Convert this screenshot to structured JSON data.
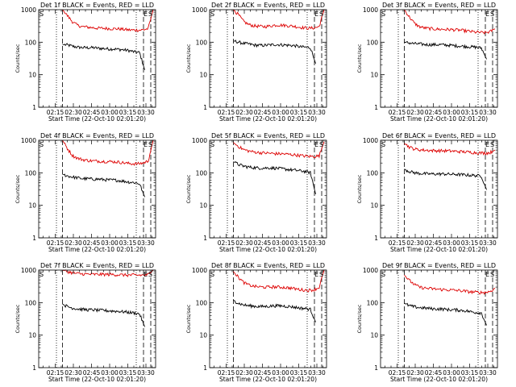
{
  "colors": {
    "events": "#000000",
    "lld": "#dd0000",
    "axis": "#000000"
  },
  "chart_data": [
    {
      "type": "line",
      "title": "Det 1f BLACK = Events, RED = LLD",
      "xlabel": "Start Time (22-Oct-10 02:01:20)",
      "ylabel": "Counts/sec",
      "x_ticks": [
        "02:15",
        "02:30",
        "02:45",
        "03:00",
        "03:15",
        "03:30"
      ],
      "y_ticks": [
        "1",
        "10",
        "100",
        "1000"
      ],
      "y_scale": "log",
      "ylim": [
        1,
        1000
      ],
      "xlim": [
        "02:01:20",
        "03:38"
      ],
      "markers": [
        {
          "label": "S",
          "time": "02:01:20"
        },
        {
          "label": "E",
          "time": "03:32"
        },
        {
          "label": "S",
          "time": "03:36"
        }
      ],
      "dotted_lines": [
        "02:16",
        "03:22"
      ],
      "dashed_lines": [
        "02:21",
        "03:28",
        "03:34"
      ],
      "series": [
        {
          "color": "events",
          "start": "02:21",
          "end": "03:29",
          "values": [
            85,
            82,
            75,
            70,
            68,
            68,
            68,
            65,
            64,
            62,
            62,
            60,
            58,
            55,
            50,
            48,
            14
          ]
        },
        {
          "color": "lld",
          "start": "02:21",
          "end": "03:36",
          "values": [
            1000,
            650,
            420,
            330,
            300,
            290,
            280,
            270,
            268,
            265,
            260,
            258,
            250,
            240,
            235,
            235,
            240,
            260,
            1000
          ]
        }
      ]
    },
    {
      "type": "line",
      "title": "Det 2f BLACK = Events, RED = LLD",
      "xlabel": "Start Time (22-Oct-10 02:01:20)",
      "ylabel": "Counts/sec",
      "x_ticks": [
        "02:15",
        "02:30",
        "02:45",
        "03:00",
        "03:15",
        "03:30"
      ],
      "y_ticks": [
        "1",
        "10",
        "100",
        "1000"
      ],
      "y_scale": "log",
      "ylim": [
        1,
        1000
      ],
      "xlim": [
        "02:01:20",
        "03:38"
      ],
      "markers": [
        {
          "label": "S",
          "time": "02:01:20"
        },
        {
          "label": "E",
          "time": "03:32"
        },
        {
          "label": "S",
          "time": "03:36"
        }
      ],
      "dotted_lines": [
        "02:16",
        "03:22"
      ],
      "dashed_lines": [
        "02:21",
        "03:28",
        "03:34"
      ],
      "series": [
        {
          "color": "events",
          "start": "02:21",
          "end": "03:29",
          "values": [
            110,
            100,
            92,
            88,
            82,
            80,
            80,
            82,
            85,
            84,
            82,
            80,
            78,
            72,
            70,
            68,
            22
          ]
        },
        {
          "color": "lld",
          "start": "02:21",
          "end": "03:36",
          "values": [
            1000,
            700,
            440,
            350,
            320,
            310,
            300,
            310,
            330,
            340,
            330,
            320,
            310,
            290,
            280,
            270,
            275,
            300,
            1000
          ]
        }
      ]
    },
    {
      "type": "line",
      "title": "Det 3f BLACK = Events, RED = LLD",
      "xlabel": "Start Time (22-Oct-10 02:01:20)",
      "ylabel": "Counts/sec",
      "x_ticks": [
        "02:15",
        "02:30",
        "02:45",
        "03:00",
        "03:15",
        "03:30"
      ],
      "y_ticks": [
        "1",
        "10",
        "100",
        "1000"
      ],
      "y_scale": "log",
      "ylim": [
        1,
        1000
      ],
      "xlim": [
        "02:01:20",
        "03:38"
      ],
      "markers": [
        {
          "label": "S",
          "time": "02:01:20"
        },
        {
          "label": "E",
          "time": "03:32"
        },
        {
          "label": "S",
          "time": "03:36"
        }
      ],
      "dotted_lines": [
        "02:16",
        "03:22"
      ],
      "dashed_lines": [
        "02:21",
        "03:28",
        "03:34"
      ],
      "series": [
        {
          "color": "events",
          "start": "02:21",
          "end": "03:29",
          "values": [
            100,
            95,
            90,
            88,
            85,
            84,
            84,
            84,
            82,
            80,
            78,
            76,
            74,
            72,
            70,
            66,
            30
          ]
        },
        {
          "color": "lld",
          "start": "02:21",
          "end": "03:36",
          "values": [
            1000,
            600,
            380,
            300,
            275,
            262,
            255,
            250,
            248,
            245,
            240,
            235,
            225,
            215,
            205,
            200,
            195,
            210,
            260
          ]
        }
      ]
    },
    {
      "type": "line",
      "title": "Det 4f BLACK = Events, RED = LLD",
      "xlabel": "Start Time (22-Oct-10 02:01:20)",
      "ylabel": "Counts/sec",
      "x_ticks": [
        "02:15",
        "02:30",
        "02:45",
        "03:00",
        "03:15",
        "03:30"
      ],
      "y_ticks": [
        "1",
        "10",
        "100",
        "1000"
      ],
      "y_scale": "log",
      "ylim": [
        1,
        1000
      ],
      "xlim": [
        "02:01:20",
        "03:38"
      ],
      "markers": [
        {
          "label": "S",
          "time": "02:01:20"
        },
        {
          "label": "E",
          "time": "03:32"
        },
        {
          "label": "S",
          "time": "03:36"
        }
      ],
      "dotted_lines": [
        "02:16",
        "03:22"
      ],
      "dashed_lines": [
        "02:21",
        "03:28",
        "03:34"
      ],
      "series": [
        {
          "color": "events",
          "start": "02:21",
          "end": "03:29",
          "values": [
            90,
            80,
            74,
            70,
            66,
            66,
            64,
            64,
            62,
            60,
            60,
            58,
            55,
            52,
            50,
            46,
            18
          ]
        },
        {
          "color": "lld",
          "start": "02:21",
          "end": "03:36",
          "values": [
            1000,
            550,
            340,
            280,
            255,
            240,
            232,
            230,
            225,
            222,
            220,
            215,
            205,
            195,
            190,
            190,
            200,
            230,
            1000
          ]
        }
      ]
    },
    {
      "type": "line",
      "title": "Det 5f BLACK = Events, RED = LLD",
      "xlabel": "Start Time (22-Oct-10 02:01:20)",
      "ylabel": "Counts/sec",
      "x_ticks": [
        "02:15",
        "02:30",
        "02:45",
        "03:00",
        "03:15",
        "03:30"
      ],
      "y_ticks": [
        "1",
        "10",
        "100",
        "1000"
      ],
      "y_scale": "log",
      "ylim": [
        1,
        1000
      ],
      "xlim": [
        "02:01:20",
        "03:38"
      ],
      "markers": [
        {
          "label": "S",
          "time": "02:01:20"
        },
        {
          "label": "E",
          "time": "03:32"
        },
        {
          "label": "S",
          "time": "03:36"
        }
      ],
      "dotted_lines": [
        "02:16",
        "03:22"
      ],
      "dashed_lines": [
        "02:21",
        "03:28",
        "03:34"
      ],
      "series": [
        {
          "color": "events",
          "start": "02:21",
          "end": "03:29",
          "values": [
            220,
            180,
            160,
            150,
            145,
            140,
            140,
            142,
            140,
            135,
            130,
            125,
            120,
            115,
            110,
            100,
            22
          ]
        },
        {
          "color": "lld",
          "start": "02:21",
          "end": "03:36",
          "values": [
            850,
            650,
            520,
            470,
            440,
            420,
            410,
            400,
            390,
            385,
            380,
            370,
            360,
            345,
            330,
            320,
            320,
            330,
            900
          ]
        }
      ]
    },
    {
      "type": "line",
      "title": "Det 6f BLACK = Events, RED = LLD",
      "xlabel": "Start Time (22-Oct-10 02:01:20)",
      "ylabel": "Counts/sec",
      "x_ticks": [
        "02:15",
        "02:30",
        "02:45",
        "03:00",
        "03:15",
        "03:30"
      ],
      "y_ticks": [
        "1",
        "10",
        "100",
        "1000"
      ],
      "y_scale": "log",
      "ylim": [
        1,
        1000
      ],
      "xlim": [
        "02:01:20",
        "03:38"
      ],
      "markers": [
        {
          "label": "S",
          "time": "02:01:20"
        },
        {
          "label": "E",
          "time": "03:32"
        },
        {
          "label": "S",
          "time": "03:36"
        }
      ],
      "dotted_lines": [
        "02:16",
        "03:22"
      ],
      "dashed_lines": [
        "02:21",
        "03:28",
        "03:34"
      ],
      "series": [
        {
          "color": "events",
          "start": "02:21",
          "end": "03:29",
          "values": [
            130,
            110,
            100,
            96,
            94,
            92,
            92,
            92,
            92,
            90,
            90,
            88,
            86,
            84,
            82,
            80,
            30
          ]
        },
        {
          "color": "lld",
          "start": "02:21",
          "end": "03:36",
          "values": [
            800,
            620,
            540,
            510,
            500,
            490,
            480,
            480,
            475,
            470,
            460,
            450,
            440,
            430,
            420,
            410,
            405,
            420,
            500
          ]
        }
      ]
    },
    {
      "type": "line",
      "title": "Det 7f BLACK = Events, RED = LLD",
      "xlabel": "Start Time (22-Oct-10 02:01:20)",
      "ylabel": "Counts/sec",
      "x_ticks": [
        "02:15",
        "02:30",
        "02:45",
        "03:00",
        "03:15",
        "03:30"
      ],
      "y_ticks": [
        "1",
        "10",
        "100",
        "1000"
      ],
      "y_scale": "log",
      "ylim": [
        1,
        1000
      ],
      "xlim": [
        "02:01:20",
        "03:38"
      ],
      "markers": [
        {
          "label": "S",
          "time": "02:01:20"
        },
        {
          "label": "E",
          "time": "03:32"
        },
        {
          "label": "S",
          "time": "03:36"
        }
      ],
      "dotted_lines": [
        "02:16",
        "03:22"
      ],
      "dashed_lines": [
        "02:21",
        "03:28",
        "03:34"
      ],
      "series": [
        {
          "color": "events",
          "start": "02:21",
          "end": "03:29",
          "values": [
            90,
            75,
            68,
            64,
            62,
            60,
            60,
            58,
            58,
            56,
            55,
            54,
            52,
            50,
            48,
            45,
            18
          ]
        },
        {
          "color": "lld",
          "start": "02:21",
          "end": "03:36",
          "values": [
            1000,
            900,
            820,
            780,
            760,
            750,
            740,
            740,
            740,
            735,
            730,
            720,
            710,
            700,
            700,
            700,
            700,
            720,
            1000
          ]
        }
      ]
    },
    {
      "type": "line",
      "title": "Det 8f BLACK = Events, RED = LLD",
      "xlabel": "Start Time (22-Oct-10 02:01:20)",
      "ylabel": "Counts/sec",
      "x_ticks": [
        "02:15",
        "02:30",
        "02:45",
        "03:00",
        "03:15",
        "03:30"
      ],
      "y_ticks": [
        "1",
        "10",
        "100",
        "1000"
      ],
      "y_scale": "log",
      "ylim": [
        1,
        1000
      ],
      "xlim": [
        "02:01:20",
        "03:38"
      ],
      "markers": [
        {
          "label": "S",
          "time": "02:01:20"
        },
        {
          "label": "E",
          "time": "03:32"
        },
        {
          "label": "S",
          "time": "03:36"
        }
      ],
      "dotted_lines": [
        "02:16",
        "03:22"
      ],
      "dashed_lines": [
        "02:21",
        "03:28",
        "03:34"
      ],
      "series": [
        {
          "color": "events",
          "start": "02:21",
          "end": "03:29",
          "values": [
            120,
            95,
            85,
            80,
            78,
            76,
            76,
            78,
            80,
            80,
            78,
            76,
            72,
            68,
            66,
            62,
            25
          ]
        },
        {
          "color": "lld",
          "start": "02:21",
          "end": "03:36",
          "values": [
            900,
            600,
            420,
            350,
            320,
            305,
            300,
            300,
            305,
            300,
            295,
            285,
            270,
            255,
            245,
            240,
            250,
            290,
            1000
          ]
        }
      ]
    },
    {
      "type": "line",
      "title": "Det 9f BLACK = Events, RED = LLD",
      "xlabel": "Start Time (22-Oct-10 02:01:20)",
      "ylabel": "Counts/sec",
      "x_ticks": [
        "02:15",
        "02:30",
        "02:45",
        "03:00",
        "03:15",
        "03:30"
      ],
      "y_ticks": [
        "1",
        "10",
        "100",
        "1000"
      ],
      "y_scale": "log",
      "ylim": [
        1,
        1000
      ],
      "xlim": [
        "02:01:20",
        "03:38"
      ],
      "markers": [
        {
          "label": "S",
          "time": "02:01:20"
        },
        {
          "label": "E",
          "time": "03:32"
        },
        {
          "label": "S",
          "time": "03:36"
        }
      ],
      "dotted_lines": [
        "02:16",
        "03:22"
      ],
      "dashed_lines": [
        "02:21",
        "03:28",
        "03:34"
      ],
      "series": [
        {
          "color": "events",
          "start": "02:21",
          "end": "03:29",
          "values": [
            95,
            80,
            74,
            70,
            68,
            66,
            64,
            64,
            62,
            60,
            60,
            58,
            56,
            52,
            50,
            48,
            20
          ]
        },
        {
          "color": "lld",
          "start": "02:21",
          "end": "03:36",
          "values": [
            700,
            480,
            360,
            300,
            280,
            270,
            262,
            255,
            250,
            245,
            240,
            235,
            225,
            215,
            210,
            205,
            205,
            220,
            280
          ]
        }
      ]
    }
  ]
}
